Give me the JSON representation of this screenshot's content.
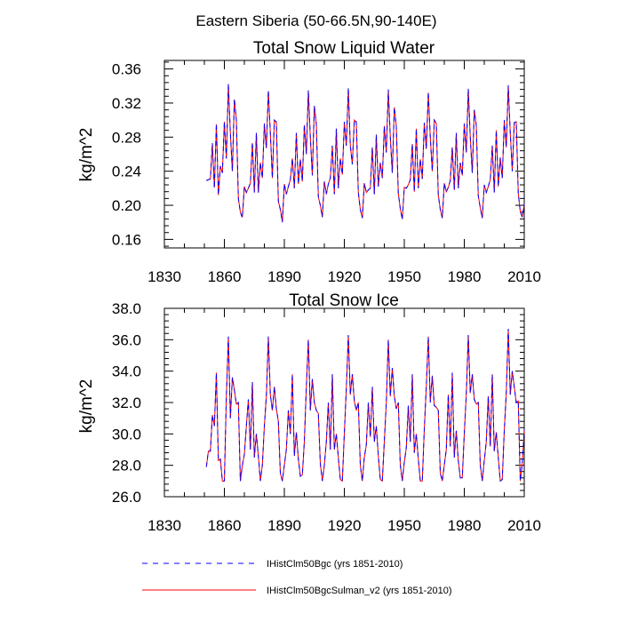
{
  "figure": {
    "suptitle": "Eastern Siberia (50-66.5N,90-140E)"
  },
  "legend": {
    "placement": "bottom-left",
    "items": [
      {
        "label": "IHistClm50Bgc (yrs 1851-2010)",
        "color": "#0000ff",
        "dash": "dashed"
      },
      {
        "label": "IHistClm50BgcSulman_v2 (yrs 1851-2010)",
        "color": "#ff0000",
        "dash": "solid"
      }
    ]
  },
  "chart_data": [
    {
      "type": "line",
      "title": "Total Snow Liquid Water",
      "xlabel": "",
      "ylabel": "kg/m^2",
      "xlim": [
        1830,
        2010
      ],
      "ylim": [
        0.15,
        0.37
      ],
      "xticks": [
        1830,
        1860,
        1890,
        1920,
        1950,
        1980,
        2010
      ],
      "xtick_labels": [
        "1830",
        "1860",
        "1890",
        "1920",
        "1950",
        "1980",
        "2010"
      ],
      "yticks": [
        0.16,
        0.2,
        0.24,
        0.28,
        0.32,
        0.36
      ],
      "ytick_labels": [
        "0.16",
        "0.20",
        "0.24",
        "0.28",
        "0.32",
        "0.36"
      ],
      "grid": false,
      "x": [
        1851,
        1852,
        1853,
        1854,
        1855,
        1856,
        1857,
        1858,
        1859,
        1860,
        1861,
        1862,
        1863,
        1864,
        1865,
        1866,
        1867,
        1868,
        1869,
        1870,
        1871,
        1872,
        1873,
        1874,
        1875,
        1876,
        1877,
        1878,
        1879,
        1880,
        1881,
        1882,
        1883,
        1884,
        1885,
        1886,
        1887,
        1888,
        1889,
        1890,
        1891,
        1892,
        1893,
        1894,
        1895,
        1896,
        1897,
        1898,
        1899,
        1900,
        1901,
        1902,
        1903,
        1904,
        1905,
        1906,
        1907,
        1908,
        1909,
        1910,
        1911,
        1912,
        1913,
        1914,
        1915,
        1916,
        1917,
        1918,
        1919,
        1920,
        1921,
        1922,
        1923,
        1924,
        1925,
        1926,
        1927,
        1928,
        1929,
        1930,
        1931,
        1932,
        1933,
        1934,
        1935,
        1936,
        1937,
        1938,
        1939,
        1940,
        1941,
        1942,
        1943,
        1944,
        1945,
        1946,
        1947,
        1948,
        1949,
        1950,
        1951,
        1952,
        1953,
        1954,
        1955,
        1956,
        1957,
        1958,
        1959,
        1960,
        1961,
        1962,
        1963,
        1964,
        1965,
        1966,
        1967,
        1968,
        1969,
        1970,
        1971,
        1972,
        1973,
        1974,
        1975,
        1976,
        1977,
        1978,
        1979,
        1980,
        1981,
        1982,
        1983,
        1984,
        1985,
        1986,
        1987,
        1988,
        1989,
        1990,
        1991,
        1992,
        1993,
        1994,
        1995,
        1996,
        1997,
        1998,
        1999,
        2000,
        2001,
        2002,
        2003,
        2004,
        2005,
        2006,
        2007,
        2008,
        2009,
        2010
      ],
      "series": [
        {
          "name": "IHistClm50Bgc (yrs 1851-2010)",
          "color": "#0000ff",
          "dash": "dashed",
          "values": [
            0.229,
            0.23,
            0.231,
            0.273,
            0.22,
            0.296,
            0.212,
            0.246,
            0.238,
            0.298,
            0.255,
            0.343,
            0.285,
            0.24,
            0.325,
            0.3,
            0.208,
            0.192,
            0.185,
            0.222,
            0.215,
            0.22,
            0.226,
            0.274,
            0.215,
            0.285,
            0.215,
            0.25,
            0.232,
            0.296,
            0.267,
            0.335,
            0.285,
            0.232,
            0.3,
            0.298,
            0.205,
            0.195,
            0.18,
            0.225,
            0.213,
            0.222,
            0.23,
            0.255,
            0.22,
            0.285,
            0.225,
            0.254,
            0.228,
            0.295,
            0.26,
            0.335,
            0.28,
            0.235,
            0.317,
            0.295,
            0.21,
            0.2,
            0.186,
            0.228,
            0.213,
            0.225,
            0.232,
            0.27,
            0.213,
            0.29,
            0.22,
            0.255,
            0.236,
            0.298,
            0.27,
            0.338,
            0.27,
            0.248,
            0.3,
            0.298,
            0.215,
            0.195,
            0.185,
            0.226,
            0.215,
            0.218,
            0.22,
            0.268,
            0.213,
            0.283,
            0.222,
            0.25,
            0.232,
            0.293,
            0.262,
            0.336,
            0.28,
            0.238,
            0.315,
            0.293,
            0.214,
            0.196,
            0.183,
            0.221,
            0.22,
            0.224,
            0.23,
            0.272,
            0.216,
            0.29,
            0.22,
            0.254,
            0.231,
            0.297,
            0.266,
            0.333,
            0.28,
            0.24,
            0.3,
            0.296,
            0.212,
            0.195,
            0.185,
            0.226,
            0.216,
            0.221,
            0.229,
            0.268,
            0.218,
            0.285,
            0.22,
            0.25,
            0.235,
            0.296,
            0.262,
            0.337,
            0.28,
            0.238,
            0.312,
            0.294,
            0.211,
            0.197,
            0.185,
            0.224,
            0.215,
            0.222,
            0.23,
            0.27,
            0.215,
            0.288,
            0.222,
            0.256,
            0.232,
            0.3,
            0.268,
            0.341,
            0.285,
            0.24,
            0.297,
            0.298,
            0.214,
            0.193,
            0.186,
            0.202
          ]
        },
        {
          "name": "IHistClm50BgcSulman_v2 (yrs 1851-2010)",
          "color": "#ff0000",
          "dash": "solid",
          "values": [
            0.229,
            0.23,
            0.231,
            0.272,
            0.221,
            0.295,
            0.212,
            0.246,
            0.238,
            0.298,
            0.255,
            0.342,
            0.285,
            0.24,
            0.324,
            0.3,
            0.208,
            0.192,
            0.186,
            0.222,
            0.215,
            0.22,
            0.226,
            0.273,
            0.215,
            0.285,
            0.215,
            0.25,
            0.232,
            0.296,
            0.267,
            0.334,
            0.285,
            0.232,
            0.3,
            0.297,
            0.205,
            0.195,
            0.181,
            0.225,
            0.213,
            0.222,
            0.23,
            0.255,
            0.22,
            0.285,
            0.225,
            0.254,
            0.228,
            0.294,
            0.26,
            0.334,
            0.28,
            0.235,
            0.316,
            0.295,
            0.21,
            0.2,
            0.186,
            0.228,
            0.213,
            0.225,
            0.232,
            0.27,
            0.213,
            0.29,
            0.22,
            0.255,
            0.236,
            0.297,
            0.27,
            0.337,
            0.27,
            0.248,
            0.3,
            0.297,
            0.215,
            0.195,
            0.185,
            0.226,
            0.215,
            0.218,
            0.22,
            0.268,
            0.213,
            0.283,
            0.222,
            0.25,
            0.232,
            0.293,
            0.262,
            0.335,
            0.28,
            0.238,
            0.315,
            0.293,
            0.214,
            0.196,
            0.184,
            0.221,
            0.22,
            0.224,
            0.23,
            0.272,
            0.216,
            0.29,
            0.22,
            0.254,
            0.231,
            0.297,
            0.266,
            0.332,
            0.28,
            0.24,
            0.3,
            0.296,
            0.212,
            0.195,
            0.185,
            0.226,
            0.216,
            0.221,
            0.229,
            0.268,
            0.218,
            0.285,
            0.22,
            0.25,
            0.235,
            0.296,
            0.262,
            0.336,
            0.28,
            0.238,
            0.312,
            0.294,
            0.211,
            0.197,
            0.185,
            0.224,
            0.215,
            0.222,
            0.23,
            0.27,
            0.215,
            0.288,
            0.222,
            0.256,
            0.232,
            0.299,
            0.268,
            0.34,
            0.285,
            0.24,
            0.297,
            0.298,
            0.214,
            0.193,
            0.186,
            0.202
          ]
        }
      ]
    },
    {
      "type": "line",
      "title": "Total Snow Ice",
      "xlabel": "",
      "ylabel": "kg/m^2",
      "xlim": [
        1830,
        2010
      ],
      "ylim": [
        26.0,
        38.0
      ],
      "xticks": [
        1830,
        1860,
        1890,
        1920,
        1950,
        1980,
        2010
      ],
      "xtick_labels": [
        "1830",
        "1860",
        "1890",
        "1920",
        "1950",
        "1980",
        "2010"
      ],
      "yticks": [
        26.0,
        28.0,
        30.0,
        32.0,
        34.0,
        36.0,
        38.0
      ],
      "ytick_labels": [
        "26.0",
        "28.0",
        "30.0",
        "32.0",
        "34.0",
        "36.0",
        "38.0"
      ],
      "grid": false,
      "x": [
        1851,
        1852,
        1853,
        1854,
        1855,
        1856,
        1857,
        1858,
        1859,
        1860,
        1861,
        1862,
        1863,
        1864,
        1865,
        1866,
        1867,
        1868,
        1869,
        1870,
        1871,
        1872,
        1873,
        1874,
        1875,
        1876,
        1877,
        1878,
        1879,
        1880,
        1881,
        1882,
        1883,
        1884,
        1885,
        1886,
        1887,
        1888,
        1889,
        1890,
        1891,
        1892,
        1893,
        1894,
        1895,
        1896,
        1897,
        1898,
        1899,
        1900,
        1901,
        1902,
        1903,
        1904,
        1905,
        1906,
        1907,
        1908,
        1909,
        1910,
        1911,
        1912,
        1913,
        1914,
        1915,
        1916,
        1917,
        1918,
        1919,
        1920,
        1921,
        1922,
        1923,
        1924,
        1925,
        1926,
        1927,
        1928,
        1929,
        1930,
        1931,
        1932,
        1933,
        1934,
        1935,
        1936,
        1937,
        1938,
        1939,
        1940,
        1941,
        1942,
        1943,
        1944,
        1945,
        1946,
        1947,
        1948,
        1949,
        1950,
        1951,
        1952,
        1953,
        1954,
        1955,
        1956,
        1957,
        1958,
        1959,
        1960,
        1961,
        1962,
        1963,
        1964,
        1965,
        1966,
        1967,
        1968,
        1969,
        1970,
        1971,
        1972,
        1973,
        1974,
        1975,
        1976,
        1977,
        1978,
        1979,
        1980,
        1981,
        1982,
        1983,
        1984,
        1985,
        1986,
        1987,
        1988,
        1989,
        1990,
        1991,
        1992,
        1993,
        1994,
        1995,
        1996,
        1997,
        1998,
        1999,
        2000,
        2001,
        2002,
        2003,
        2004,
        2005,
        2006,
        2007,
        2008,
        2009,
        2010
      ],
      "series": [
        {
          "name": "IHistClm50Bgc (yrs 1851-2010)",
          "color": "#0000ff",
          "dash": "dashed",
          "values": [
            27.9,
            28.9,
            28.9,
            31.2,
            30.5,
            33.9,
            28.3,
            28.4,
            27.0,
            27.0,
            32.4,
            36.2,
            31.0,
            33.6,
            32.8,
            31.9,
            32.0,
            27.0,
            28.0,
            28.7,
            30.5,
            32.2,
            29.0,
            33.3,
            28.5,
            30.0,
            28.6,
            27.0,
            28.0,
            30.5,
            32.4,
            36.2,
            32.5,
            31.5,
            33.0,
            31.6,
            30.8,
            27.5,
            27.0,
            28.0,
            29.0,
            31.5,
            30.0,
            33.8,
            28.6,
            30.1,
            28.4,
            27.3,
            27.4,
            29.5,
            33.0,
            36.0,
            31.5,
            33.5,
            32.0,
            31.5,
            31.3,
            28.1,
            27.0,
            28.0,
            29.5,
            32.0,
            29.0,
            33.8,
            29.0,
            30.0,
            28.5,
            27.1,
            27.0,
            30.0,
            32.9,
            36.3,
            32.5,
            33.8,
            32.1,
            31.5,
            32.0,
            28.0,
            27.0,
            28.5,
            29.3,
            32.0,
            29.8,
            33.0,
            29.5,
            30.5,
            28.6,
            27.1,
            27.0,
            29.5,
            32.0,
            36.0,
            32.4,
            34.2,
            32.4,
            31.6,
            32.0,
            28.0,
            27.0,
            28.2,
            29.1,
            31.8,
            29.5,
            33.8,
            28.8,
            30.0,
            28.4,
            27.0,
            27.0,
            30.3,
            33.0,
            36.2,
            32.0,
            33.7,
            31.8,
            31.7,
            31.5,
            27.5,
            27.0,
            28.0,
            29.0,
            32.5,
            29.2,
            33.9,
            28.5,
            30.2,
            28.3,
            27.2,
            27.2,
            30.0,
            32.5,
            36.3,
            32.6,
            33.8,
            32.2,
            31.9,
            32.0,
            28.0,
            27.0,
            28.3,
            29.5,
            32.4,
            29.2,
            33.8,
            28.9,
            30.1,
            28.5,
            27.0,
            27.1,
            30.2,
            32.6,
            36.7,
            32.5,
            34.0,
            33.0,
            32.0,
            32.1,
            27.0,
            28.1,
            30.3
          ]
        },
        {
          "name": "IHistClm50BgcSulman_v2 (yrs 1851-2010)",
          "color": "#ff0000",
          "dash": "solid",
          "values": [
            27.9,
            28.9,
            28.9,
            31.2,
            30.5,
            33.9,
            28.3,
            28.4,
            27.0,
            27.0,
            32.4,
            36.2,
            31.0,
            33.6,
            32.8,
            31.9,
            32.0,
            27.0,
            28.0,
            28.7,
            30.5,
            32.2,
            29.0,
            33.3,
            28.5,
            30.0,
            28.6,
            27.0,
            28.0,
            30.5,
            32.4,
            36.2,
            32.5,
            31.5,
            33.0,
            31.6,
            30.8,
            27.5,
            27.0,
            28.0,
            29.0,
            31.5,
            30.0,
            33.8,
            28.6,
            30.1,
            28.4,
            27.3,
            27.4,
            29.5,
            33.0,
            36.0,
            31.5,
            33.5,
            32.0,
            31.5,
            31.3,
            28.1,
            27.0,
            28.0,
            29.5,
            32.0,
            29.0,
            33.8,
            29.0,
            30.0,
            28.5,
            27.1,
            27.0,
            30.0,
            32.9,
            36.3,
            32.5,
            33.8,
            32.1,
            31.5,
            32.0,
            28.0,
            27.0,
            28.5,
            29.3,
            32.0,
            29.8,
            33.0,
            29.5,
            30.5,
            28.6,
            27.1,
            27.0,
            29.5,
            32.0,
            36.0,
            32.4,
            34.2,
            32.4,
            31.6,
            32.0,
            28.0,
            27.0,
            28.2,
            29.1,
            31.8,
            29.5,
            33.8,
            28.8,
            30.0,
            28.4,
            27.0,
            27.0,
            30.3,
            33.0,
            36.2,
            32.0,
            33.7,
            31.8,
            31.7,
            31.5,
            27.5,
            27.0,
            28.0,
            29.0,
            32.5,
            29.2,
            33.9,
            28.5,
            30.2,
            28.3,
            27.2,
            27.2,
            30.0,
            32.5,
            36.3,
            32.6,
            33.8,
            32.2,
            31.9,
            32.0,
            28.0,
            27.0,
            28.3,
            29.5,
            32.4,
            29.2,
            33.8,
            28.9,
            30.1,
            28.5,
            27.0,
            27.1,
            30.2,
            32.6,
            36.7,
            32.5,
            34.0,
            33.0,
            32.0,
            32.1,
            27.0,
            28.1,
            30.3
          ]
        }
      ]
    }
  ]
}
